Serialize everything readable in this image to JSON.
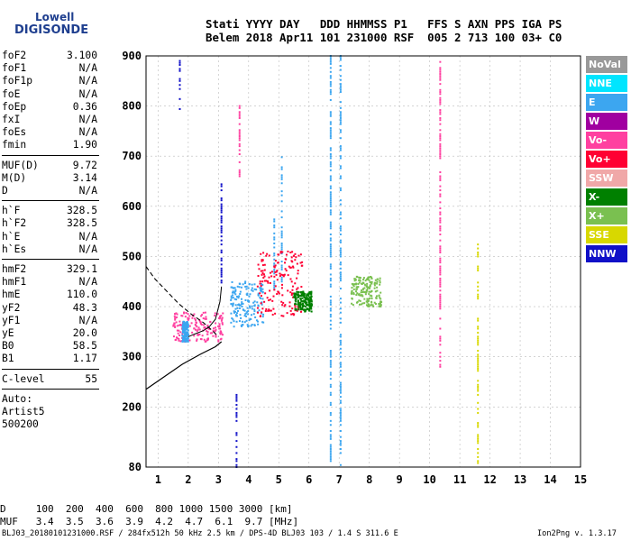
{
  "logo": {
    "line1": "Lowell",
    "line2": "DIGISONDE"
  },
  "header": {
    "line1": "Stati YYYY DAY   DDD HHMMSS P1   FFS S AXN PPS IGA PS",
    "line2": "Belem 2018 Apr11 101 231000 RSF  005 2 713 100 03+ C0"
  },
  "params": [
    {
      "k": "foF2",
      "v": "3.100"
    },
    {
      "k": "foF1",
      "v": "N/A"
    },
    {
      "k": "foF1p",
      "v": "N/A"
    },
    {
      "k": "foE",
      "v": "N/A"
    },
    {
      "k": "foEp",
      "v": "0.36"
    },
    {
      "k": "fxI",
      "v": "N/A"
    },
    {
      "k": "foEs",
      "v": "N/A"
    },
    {
      "k": "fmin",
      "v": "1.90"
    },
    {
      "k": "MUF(D)",
      "v": "9.72"
    },
    {
      "k": "M(D)",
      "v": "3.14"
    },
    {
      "k": "D",
      "v": "N/A"
    },
    {
      "k": "h`F",
      "v": "328.5"
    },
    {
      "k": "h`F2",
      "v": "328.5"
    },
    {
      "k": "h`E",
      "v": "N/A"
    },
    {
      "k": "h`Es",
      "v": "N/A"
    },
    {
      "k": "hmF2",
      "v": "329.1"
    },
    {
      "k": "hmF1",
      "v": "N/A"
    },
    {
      "k": "hmE",
      "v": "110.0"
    },
    {
      "k": "yF2",
      "v": "48.3"
    },
    {
      "k": "yF1",
      "v": "N/A"
    },
    {
      "k": "yE",
      "v": "20.0"
    },
    {
      "k": "B0",
      "v": "58.5"
    },
    {
      "k": "B1",
      "v": "1.17"
    },
    {
      "k": "C-level",
      "v": "55"
    },
    {
      "k": "Auto:",
      "v": ""
    },
    {
      "k": "Artist5",
      "v": ""
    },
    {
      "k": "500200",
      "v": ""
    }
  ],
  "legend": [
    {
      "label": "NoVal",
      "color": "#999999"
    },
    {
      "label": "NNE",
      "color": "#00e5ff"
    },
    {
      "label": "E",
      "color": "#3ca6f0"
    },
    {
      "label": "W",
      "color": "#a000a0"
    },
    {
      "label": "Vo-",
      "color": "#ff40a0"
    },
    {
      "label": "Vo+",
      "color": "#ff0033"
    },
    {
      "label": "SSW",
      "color": "#f0a8a8"
    },
    {
      "label": "X-",
      "color": "#008000"
    },
    {
      "label": "X+",
      "color": "#7ac050"
    },
    {
      "label": "SSE",
      "color": "#d8d800"
    },
    {
      "label": "NNW",
      "color": "#1010c8"
    }
  ],
  "mufTable": {
    "line1": "D     100  200  400  600  800 1000 1500 3000 [km]",
    "line2": "MUF   3.4  3.5  3.6  3.9  4.2  4.7  6.1  9.7 [MHz]"
  },
  "footer": {
    "left": "BLJ03_20180101231000.RSF / 284fx512h 50 kHz 2.5 km / DPS-4D BLJ03 103 / 1.4 S 311.6 E",
    "right": "Ion2Png v. 1.3.17"
  },
  "chart_data": {
    "type": "scatter",
    "x_ticks": [
      "1",
      "2",
      "3",
      "4",
      "5",
      "6",
      "7",
      "8",
      "9",
      "10",
      "11",
      "12",
      "13",
      "14",
      "15"
    ],
    "y_ticks": [
      "80",
      "200",
      "300",
      "400",
      "500",
      "600",
      "700",
      "800",
      "900"
    ],
    "xlim": [
      0.6,
      15.0
    ],
    "ylim": [
      80,
      900
    ],
    "grid": "dashed",
    "profile_solid": [
      [
        0.6,
        235
      ],
      [
        1.2,
        260
      ],
      [
        1.8,
        285
      ],
      [
        2.4,
        305
      ],
      [
        2.9,
        320
      ],
      [
        3.1,
        330
      ]
    ],
    "profile_dashed": [
      [
        0.6,
        480
      ],
      [
        0.9,
        455
      ],
      [
        1.3,
        430
      ],
      [
        1.7,
        405
      ],
      [
        2.1,
        385
      ],
      [
        2.5,
        368
      ],
      [
        2.8,
        352
      ],
      [
        3.0,
        340
      ]
    ],
    "trace_F2": [
      [
        2.0,
        340
      ],
      [
        2.2,
        345
      ],
      [
        2.5,
        352
      ],
      [
        2.7,
        360
      ],
      [
        2.9,
        375
      ],
      [
        3.05,
        410
      ],
      [
        3.1,
        440
      ]
    ],
    "scatter_columns": [
      {
        "x": 1.72,
        "y": [
          790,
          890
        ],
        "color": "#1010c8"
      },
      {
        "x": 3.1,
        "y": [
          440,
          650
        ],
        "color": "#1010c8"
      },
      {
        "x": 3.6,
        "y": [
          80,
          230
        ],
        "color": "#1010c8"
      },
      {
        "x": 3.7,
        "y": [
          640,
          800
        ],
        "color": "#ff40a0"
      },
      {
        "x": 4.85,
        "y": [
          430,
          575
        ],
        "color": "#3ca6f0"
      },
      {
        "x": 5.1,
        "y": [
          450,
          700
        ],
        "color": "#3ca6f0"
      },
      {
        "x": 6.72,
        "y": [
          80,
          900
        ],
        "color": "#3ca6f0"
      },
      {
        "x": 7.05,
        "y": [
          80,
          900
        ],
        "color": "#3ca6f0"
      },
      {
        "x": 10.35,
        "y": [
          280,
          890
        ],
        "color": "#ff40a0"
      },
      {
        "x": 11.6,
        "y": [
          80,
          530
        ],
        "color": "#d8d800"
      }
    ],
    "scatter_clusters": [
      {
        "x": [
          1.5,
          3.2
        ],
        "y": [
          330,
          390
        ],
        "color": "#ff40a0"
      },
      {
        "x": 1.9,
        "y": [
          330,
          370
        ],
        "color": "#3ca6f0"
      },
      {
        "x": [
          3.4,
          4.5
        ],
        "y": [
          360,
          450
        ],
        "color": "#3ca6f0"
      },
      {
        "x": [
          4.3,
          5.8
        ],
        "y": [
          380,
          510
        ],
        "color": "#ff0033"
      },
      {
        "x": [
          5.5,
          6.1
        ],
        "y": [
          390,
          430
        ],
        "color": "#008000"
      },
      {
        "x": [
          7.4,
          8.4
        ],
        "y": [
          400,
          460
        ],
        "color": "#7ac050"
      }
    ]
  }
}
